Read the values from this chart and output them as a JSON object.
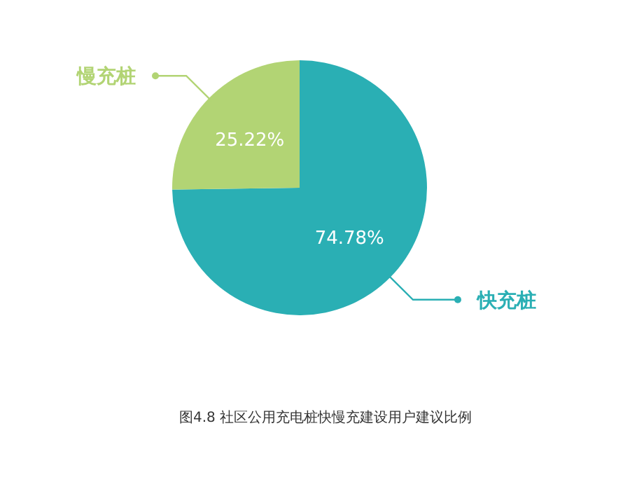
{
  "chart_data": {
    "type": "pie",
    "categories": [
      "快充桩",
      "慢充桩"
    ],
    "values": [
      74.78,
      25.22
    ],
    "value_labels": [
      "74.78%",
      "25.22%"
    ],
    "colors": [
      "#2aafb4",
      "#b2d474"
    ],
    "annotations": [
      "图4.8 社区公用充电桩快慢充建设用户建议比例"
    ]
  }
}
